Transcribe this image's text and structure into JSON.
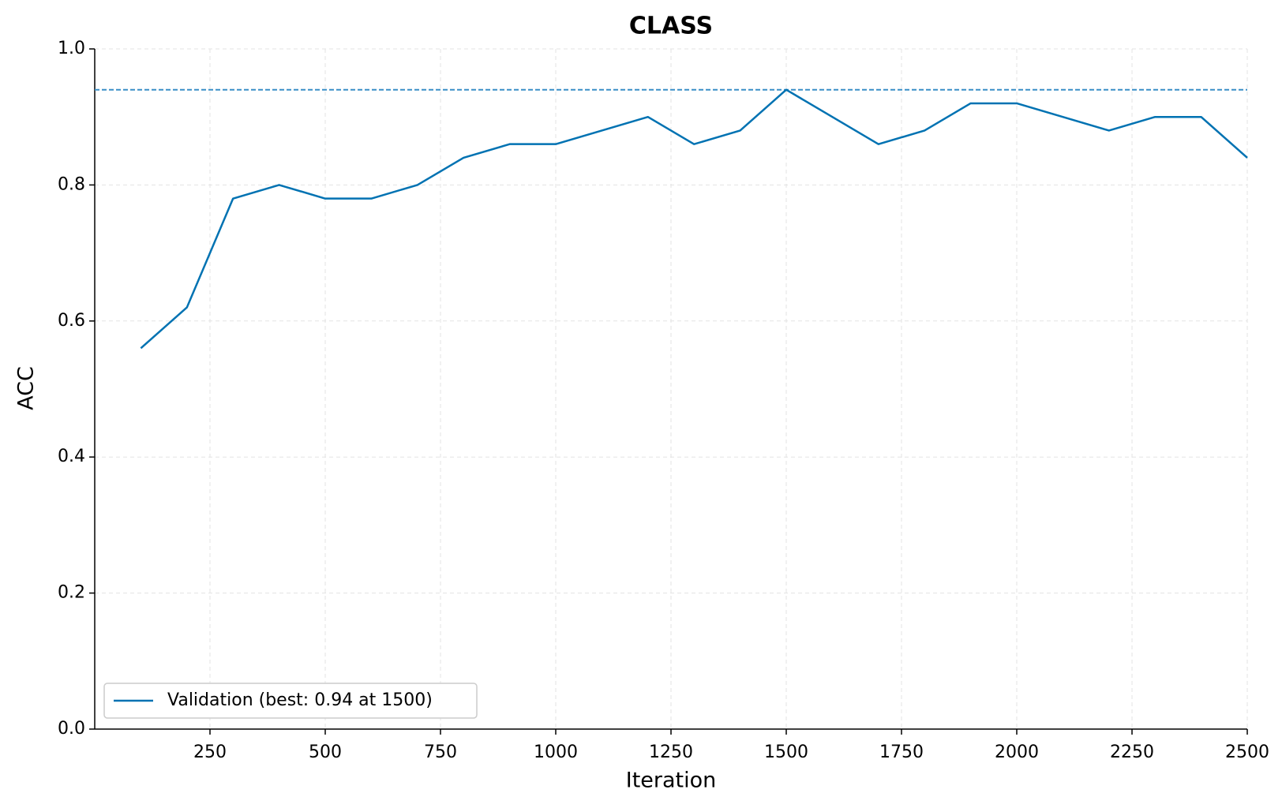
{
  "chart_data": {
    "type": "line",
    "title": "CLASS",
    "x_label": "Iteration",
    "y_label": "ACC",
    "x": [
      100,
      200,
      300,
      400,
      500,
      600,
      700,
      800,
      900,
      1000,
      1100,
      1200,
      1300,
      1400,
      1500,
      1600,
      1700,
      1800,
      1900,
      2000,
      2100,
      2200,
      2300,
      2400,
      2500
    ],
    "series": [
      {
        "name": "Validation (best: 0.94 at 1500)",
        "color": "#0072b2",
        "values": [
          0.56,
          0.62,
          0.78,
          0.8,
          0.78,
          0.78,
          0.8,
          0.84,
          0.86,
          0.86,
          0.88,
          0.9,
          0.86,
          0.88,
          0.94,
          0.9,
          0.86,
          0.88,
          0.92,
          0.92,
          0.9,
          0.88,
          0.9,
          0.9,
          0.84
        ]
      }
    ],
    "reference_line": {
      "value": 0.94,
      "color": "#3a8fc7",
      "style": "dashed"
    },
    "xlim": [
      0,
      2500
    ],
    "xticks": [
      250,
      500,
      750,
      1000,
      1250,
      1500,
      1750,
      2000,
      2250,
      2500
    ],
    "ylim": [
      0,
      1
    ],
    "yticks": [
      {
        "value": 0,
        "label": "0.0"
      },
      0.2,
      0.4,
      0.6,
      0.8,
      {
        "value": 1,
        "label": "1.0"
      }
    ],
    "grid": true,
    "legend": "lower left"
  }
}
